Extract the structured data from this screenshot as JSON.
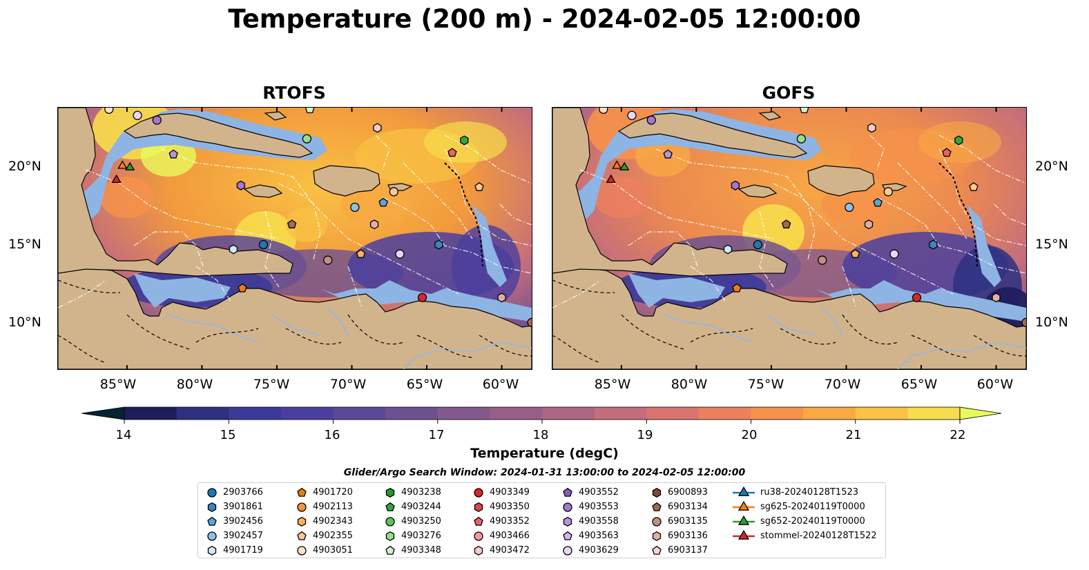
{
  "title": "Temperature (200 m) - 2024-02-05 12:00:00",
  "panels": [
    {
      "title": "RTOFS",
      "variant": "rtofs"
    },
    {
      "title": "GOFS",
      "variant": "gofs"
    }
  ],
  "lat_ticks": [
    "20°N",
    "15°N",
    "10°N"
  ],
  "lon_ticks": [
    "85°W",
    "80°W",
    "75°W",
    "70°W",
    "65°W",
    "60°W"
  ],
  "colorbar": {
    "label": "Temperature (degC)",
    "ticks": [
      "14",
      "15",
      "16",
      "17",
      "18",
      "19",
      "20",
      "21",
      "22"
    ],
    "min": 14,
    "max": 22,
    "levels": 16,
    "colors": [
      "#042333",
      "#1d1d5c",
      "#2c3180",
      "#3a3a99",
      "#4a3f9e",
      "#5c4896",
      "#6e5190",
      "#825a8c",
      "#985f89",
      "#ad6584",
      "#c46d7c",
      "#d9756f",
      "#ec805e",
      "#f6924a",
      "#f8a943",
      "#f9c243",
      "#f7dd4b",
      "#e8fa5b"
    ]
  },
  "search_window": "Glider/Argo Search Window: 2024-01-31 13:00:00 to 2024-02-05 12:00:00",
  "legend": [
    {
      "label": "2903766",
      "marker": "circle",
      "color": "#1f77b4"
    },
    {
      "label": "3901861",
      "marker": "hexagon",
      "color": "#3a87c0"
    },
    {
      "label": "3902456",
      "marker": "pentagon",
      "color": "#5ba3d9"
    },
    {
      "label": "3902457",
      "marker": "circle",
      "color": "#8ec2e8"
    },
    {
      "label": "4901719",
      "marker": "hexagon",
      "color": "#d2e6f6"
    },
    {
      "label": "4901720",
      "marker": "pentagon",
      "color": "#ef7b0a"
    },
    {
      "label": "4902113",
      "marker": "circle",
      "color": "#f89434"
    },
    {
      "label": "4902343",
      "marker": "hexagon",
      "color": "#fab062"
    },
    {
      "label": "4902355",
      "marker": "pentagon",
      "color": "#fcc890"
    },
    {
      "label": "4903051",
      "marker": "circle",
      "color": "#fde2c6"
    },
    {
      "label": "4903238",
      "marker": "hexagon",
      "color": "#1f9e2f"
    },
    {
      "label": "4903244",
      "marker": "pentagon",
      "color": "#32a83b"
    },
    {
      "label": "4903250",
      "marker": "circle",
      "color": "#5cc35e"
    },
    {
      "label": "4903276",
      "marker": "hexagon",
      "color": "#98dd8a"
    },
    {
      "label": "4903348",
      "marker": "pentagon",
      "color": "#d1f2c6"
    },
    {
      "label": "4903349",
      "marker": "circle",
      "color": "#d62728"
    },
    {
      "label": "4903350",
      "marker": "hexagon",
      "color": "#e04443"
    },
    {
      "label": "4903352",
      "marker": "pentagon",
      "color": "#ea6467"
    },
    {
      "label": "4903466",
      "marker": "circle",
      "color": "#f49a9b"
    },
    {
      "label": "4903472",
      "marker": "hexagon",
      "color": "#fbc9c9"
    },
    {
      "label": "4903552",
      "marker": "pentagon",
      "color": "#8a5cbf"
    },
    {
      "label": "4903553",
      "marker": "circle",
      "color": "#a576d1"
    },
    {
      "label": "4903558",
      "marker": "hexagon",
      "color": "#b993dc"
    },
    {
      "label": "4903563",
      "marker": "pentagon",
      "color": "#d2b5ea"
    },
    {
      "label": "4903629",
      "marker": "circle",
      "color": "#e9d6f7"
    },
    {
      "label": "6900893",
      "marker": "hexagon",
      "color": "#7a4a3a"
    },
    {
      "label": "6903134",
      "marker": "pentagon",
      "color": "#a06a58"
    },
    {
      "label": "6903135",
      "marker": "circle",
      "color": "#c48e80"
    },
    {
      "label": "6903136",
      "marker": "hexagon",
      "color": "#e2b0a8"
    },
    {
      "label": "6903137",
      "marker": "pentagon",
      "color": "#f9d8d2"
    },
    {
      "label": "ru38-20240128T1523",
      "marker": "triangle-line",
      "color": "#1f77b4"
    },
    {
      "label": "sg625-20240119T0000",
      "marker": "triangle-line",
      "color": "#ff7f0e"
    },
    {
      "label": "sg652-20240119T0000",
      "marker": "triangle-line",
      "color": "#2ca02c"
    },
    {
      "label": "stommel-20240128T1522",
      "marker": "triangle-line",
      "color": "#d62728"
    }
  ],
  "map_markers": [
    {
      "lon": -86.2,
      "lat": 24.0,
      "marker": "circle",
      "color": "#fde2c6"
    },
    {
      "lon": -84.3,
      "lat": 23.6,
      "marker": "circle",
      "color": "#e9d6f7"
    },
    {
      "lon": -83.0,
      "lat": 23.3,
      "marker": "circle",
      "color": "#a576d1"
    },
    {
      "lon": -72.8,
      "lat": 24.0,
      "marker": "pentagon",
      "color": "#d1f2c6"
    },
    {
      "lon": -73.0,
      "lat": 22.1,
      "marker": "circle",
      "color": "#98dd8a"
    },
    {
      "lon": -68.3,
      "lat": 22.8,
      "marker": "hexagon",
      "color": "#fbc9c9"
    },
    {
      "lon": -62.5,
      "lat": 22.0,
      "marker": "hexagon",
      "color": "#32a83b"
    },
    {
      "lon": -63.3,
      "lat": 21.2,
      "marker": "pentagon",
      "color": "#ea6467"
    },
    {
      "lon": -81.9,
      "lat": 21.1,
      "marker": "pentagon",
      "color": "#b993dc"
    },
    {
      "lon": -77.4,
      "lat": 19.1,
      "marker": "hexagon",
      "color": "#a576d1"
    },
    {
      "lon": -67.2,
      "lat": 18.7,
      "marker": "circle",
      "color": "#fcc890"
    },
    {
      "lon": -67.9,
      "lat": 18.0,
      "marker": "pentagon",
      "color": "#5ba3d9"
    },
    {
      "lon": -69.8,
      "lat": 17.7,
      "marker": "circle",
      "color": "#8ec2e8"
    },
    {
      "lon": -61.5,
      "lat": 19.0,
      "marker": "pentagon",
      "color": "#fcc890"
    },
    {
      "lon": -74.0,
      "lat": 16.6,
      "marker": "pentagon",
      "color": "#a06a58"
    },
    {
      "lon": -68.5,
      "lat": 16.6,
      "marker": "hexagon",
      "color": "#e2b0a8"
    },
    {
      "lon": -75.9,
      "lat": 15.3,
      "marker": "circle",
      "color": "#1f77b4"
    },
    {
      "lon": -77.9,
      "lat": 15.0,
      "marker": "hexagon",
      "color": "#d2e6f6"
    },
    {
      "lon": -69.4,
      "lat": 14.7,
      "marker": "pentagon",
      "color": "#fab062"
    },
    {
      "lon": -66.8,
      "lat": 14.7,
      "marker": "circle",
      "color": "#e9d6f7"
    },
    {
      "lon": -64.2,
      "lat": 15.3,
      "marker": "hexagon",
      "color": "#3a87c0"
    },
    {
      "lon": -71.6,
      "lat": 14.3,
      "marker": "circle",
      "color": "#c48e80"
    },
    {
      "lon": -77.3,
      "lat": 12.5,
      "marker": "pentagon",
      "color": "#ef7b0a"
    },
    {
      "lon": -65.3,
      "lat": 11.9,
      "marker": "circle",
      "color": "#d62728"
    },
    {
      "lon": -60.0,
      "lat": 11.9,
      "marker": "hexagon",
      "color": "#e2b0a8"
    },
    {
      "lon": -58.0,
      "lat": 10.3,
      "marker": "circle",
      "color": "#a06a58"
    },
    {
      "lon": -85.3,
      "lat": 20.4,
      "marker": "triangle",
      "color": "#ff7f0e"
    },
    {
      "lon": -84.8,
      "lat": 20.3,
      "marker": "triangle",
      "color": "#2ca02c"
    },
    {
      "lon": -85.7,
      "lat": 19.5,
      "marker": "triangle",
      "color": "#d62728"
    }
  ],
  "map_extent": {
    "lon_min": -89.6,
    "lon_max": -58.0,
    "lat_min": 7.3,
    "lat_max": 24.1
  }
}
